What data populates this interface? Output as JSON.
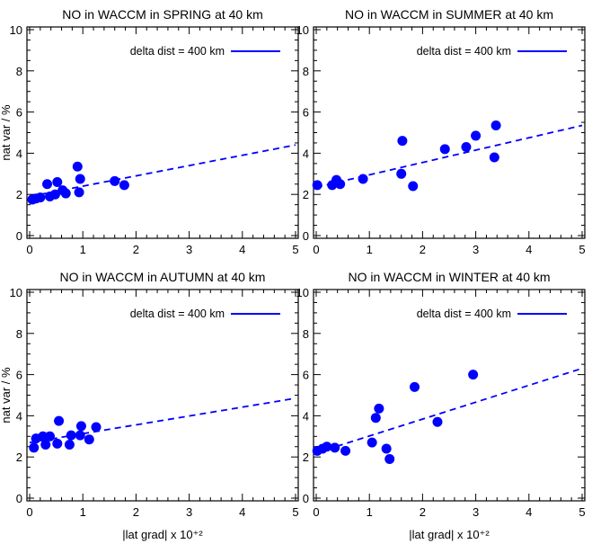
{
  "chart_data": [
    {
      "type": "scatter",
      "title": "NO in WACCM in SPRING at 40 km",
      "xlabel": "",
      "ylabel": "nat var / %",
      "xlim": [
        0,
        5
      ],
      "ylim": [
        0,
        10
      ],
      "xticks": [
        "0",
        "1",
        "2",
        "3",
        "4",
        "5"
      ],
      "yticks": [
        "0",
        "2",
        "4",
        "6",
        "8",
        "10"
      ],
      "legend_label": "delta dist = 400 km",
      "legend_position": "top-right",
      "grid": false,
      "points": [
        [
          0.05,
          1.75
        ],
        [
          0.12,
          1.8
        ],
        [
          0.2,
          1.85
        ],
        [
          0.33,
          2.5
        ],
        [
          0.38,
          1.9
        ],
        [
          0.48,
          2.0
        ],
        [
          0.52,
          2.6
        ],
        [
          0.62,
          2.2
        ],
        [
          0.68,
          2.05
        ],
        [
          0.9,
          3.35
        ],
        [
          0.93,
          2.1
        ],
        [
          0.95,
          2.75
        ],
        [
          1.6,
          2.65
        ],
        [
          1.78,
          2.45
        ]
      ],
      "fit_line": {
        "x": [
          0,
          5
        ],
        "y": [
          1.9,
          4.4
        ]
      }
    },
    {
      "type": "scatter",
      "title": "NO in WACCM in SUMMER at 40 km",
      "xlabel": "",
      "ylabel": "",
      "xlim": [
        0,
        5
      ],
      "ylim": [
        0,
        10
      ],
      "xticks": [
        "0",
        "1",
        "2",
        "3",
        "4",
        "5"
      ],
      "yticks": [
        "0",
        "2",
        "4",
        "6",
        "8",
        "10"
      ],
      "legend_label": "delta dist = 400 km",
      "legend_position": "top-right",
      "grid": false,
      "points": [
        [
          0.02,
          2.45
        ],
        [
          0.3,
          2.45
        ],
        [
          0.38,
          2.7
        ],
        [
          0.45,
          2.5
        ],
        [
          0.88,
          2.75
        ],
        [
          1.6,
          3.0
        ],
        [
          1.62,
          4.6
        ],
        [
          1.82,
          2.4
        ],
        [
          2.42,
          4.2
        ],
        [
          2.82,
          4.3
        ],
        [
          3.0,
          4.85
        ],
        [
          3.35,
          3.8
        ],
        [
          3.38,
          5.35
        ]
      ],
      "fit_line": {
        "x": [
          0,
          5
        ],
        "y": [
          2.35,
          5.35
        ]
      }
    },
    {
      "type": "scatter",
      "title": "NO in WACCM in AUTUMN at 40 km",
      "xlabel": "|lat grad| x 10⁺²",
      "ylabel": "nat var / %",
      "xlim": [
        0,
        5
      ],
      "ylim": [
        0,
        10
      ],
      "xticks": [
        "0",
        "1",
        "2",
        "3",
        "4",
        "5"
      ],
      "yticks": [
        "0",
        "2",
        "4",
        "6",
        "8",
        "10"
      ],
      "legend_label": "delta dist = 400 km",
      "legend_position": "top-right",
      "grid": false,
      "points": [
        [
          0.08,
          2.45
        ],
        [
          0.12,
          2.9
        ],
        [
          0.25,
          3.0
        ],
        [
          0.3,
          2.6
        ],
        [
          0.38,
          3.0
        ],
        [
          0.52,
          2.65
        ],
        [
          0.55,
          3.75
        ],
        [
          0.75,
          2.6
        ],
        [
          0.78,
          3.05
        ],
        [
          0.95,
          3.05
        ],
        [
          0.97,
          3.5
        ],
        [
          1.12,
          2.85
        ],
        [
          1.25,
          3.45
        ]
      ],
      "fit_line": {
        "x": [
          0,
          5
        ],
        "y": [
          2.7,
          4.85
        ]
      }
    },
    {
      "type": "scatter",
      "title": "NO in WACCM in WINTER at 40 km",
      "xlabel": "|lat grad| x 10⁺²",
      "ylabel": "",
      "xlim": [
        0,
        5
      ],
      "ylim": [
        0,
        10
      ],
      "xticks": [
        "0",
        "1",
        "2",
        "3",
        "4",
        "5"
      ],
      "yticks": [
        "0",
        "2",
        "4",
        "6",
        "8",
        "10"
      ],
      "legend_label": "delta dist = 400 km",
      "legend_position": "top-right",
      "grid": false,
      "points": [
        [
          0.02,
          2.3
        ],
        [
          0.12,
          2.4
        ],
        [
          0.2,
          2.5
        ],
        [
          0.35,
          2.45
        ],
        [
          0.55,
          2.3
        ],
        [
          1.05,
          2.7
        ],
        [
          1.12,
          3.9
        ],
        [
          1.18,
          4.35
        ],
        [
          1.32,
          2.4
        ],
        [
          1.38,
          1.9
        ],
        [
          1.85,
          5.4
        ],
        [
          2.28,
          3.7
        ],
        [
          2.95,
          6.0
        ]
      ],
      "fit_line": {
        "x": [
          0,
          5
        ],
        "y": [
          2.2,
          6.3
        ]
      }
    }
  ],
  "colors": {
    "marker": "#0000ff",
    "line": "#0000ff",
    "axes": "#000000"
  }
}
